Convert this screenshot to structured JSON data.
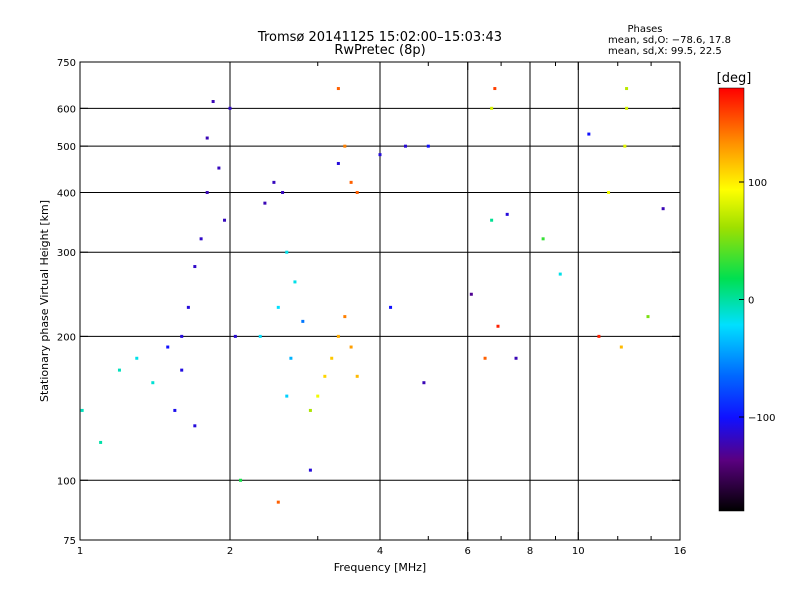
{
  "chart_data": {
    "type": "scatter",
    "title": "Tromsø 20141125 15:02:00–15:03:43",
    "subtitle": "RwPretec (8p)",
    "xlabel": "Frequency [MHz]",
    "ylabel": "Stationary phase Virtual Height [km]",
    "xscale": "log",
    "yscale": "log",
    "xlim": [
      1,
      16
    ],
    "ylim": [
      75,
      750
    ],
    "x_ticks": [
      1,
      2,
      4,
      6,
      8,
      10,
      16
    ],
    "x_tick_labels": [
      "1",
      "2",
      "4",
      "6",
      "8",
      "10",
      "16"
    ],
    "x_grid": [
      2,
      4,
      6,
      8,
      10
    ],
    "y_ticks": [
      75,
      100,
      200,
      300,
      400,
      500,
      600,
      750
    ],
    "y_tick_labels": [
      "75",
      "100",
      "200",
      "300",
      "400",
      "500",
      "600",
      "750"
    ],
    "y_grid": [
      100,
      200,
      300,
      400,
      500,
      600
    ],
    "grid": true,
    "phase_stats": {
      "header": "Phases",
      "line_o": "mean, sd,O: −78.6, 17.8",
      "line_x": "mean, sd,X:  99.5, 22.5"
    },
    "colorbar": {
      "label": "[deg]",
      "range": [
        -180,
        180
      ],
      "ticks": [
        100,
        0,
        -100
      ],
      "tick_labels": [
        "100",
        "0",
        "−100"
      ],
      "colormap": "rainbow: black (-180), purple, blue, cyan, green, yellow, orange, red (+180)"
    },
    "series": [
      {
        "points": [
          [
            1.01,
            140,
            -10
          ],
          [
            1.1,
            120,
            -5
          ],
          [
            1.2,
            170,
            -10
          ],
          [
            1.3,
            180,
            -20
          ],
          [
            1.4,
            160,
            -15
          ],
          [
            1.5,
            190,
            -100
          ],
          [
            1.55,
            140,
            -105
          ],
          [
            1.6,
            200,
            -110
          ],
          [
            1.65,
            230,
            -110
          ],
          [
            1.7,
            280,
            -115
          ],
          [
            1.75,
            320,
            -115
          ],
          [
            1.8,
            400,
            -120
          ],
          [
            1.8,
            520,
            -120
          ],
          [
            1.85,
            620,
            -120
          ],
          [
            1.9,
            450,
            -118
          ],
          [
            1.95,
            350,
            -118
          ],
          [
            2.0,
            600,
            -115
          ],
          [
            2.05,
            200,
            -112
          ],
          [
            1.7,
            130,
            -110
          ],
          [
            1.6,
            170,
            -108
          ]
        ]
      },
      {
        "points": [
          [
            2.35,
            380,
            -120
          ],
          [
            2.45,
            420,
            -118
          ],
          [
            2.55,
            400,
            -118
          ],
          [
            2.6,
            150,
            -30
          ],
          [
            2.65,
            180,
            -40
          ],
          [
            2.7,
            260,
            -20
          ],
          [
            2.5,
            230,
            -25
          ],
          [
            2.3,
            200,
            -25
          ],
          [
            2.6,
            300,
            -20
          ],
          [
            2.8,
            215,
            -60
          ]
        ]
      },
      {
        "points": [
          [
            2.9,
            140,
            65
          ],
          [
            3.0,
            150,
            90
          ],
          [
            3.1,
            165,
            110
          ],
          [
            3.2,
            180,
            115
          ],
          [
            3.3,
            200,
            125
          ],
          [
            3.4,
            220,
            140
          ],
          [
            3.5,
            190,
            130
          ],
          [
            3.6,
            165,
            120
          ],
          [
            3.3,
            460,
            -110
          ],
          [
            3.4,
            500,
            140
          ],
          [
            3.5,
            420,
            150
          ],
          [
            3.6,
            400,
            150
          ],
          [
            3.3,
            660,
            150
          ]
        ]
      },
      {
        "points": [
          [
            4.0,
            480,
            -110
          ],
          [
            4.5,
            500,
            -112
          ],
          [
            5.0,
            500,
            -100
          ],
          [
            6.8,
            660,
            160
          ],
          [
            6.7,
            600,
            80
          ],
          [
            6.7,
            350,
            0
          ],
          [
            7.2,
            360,
            -110
          ],
          [
            8.5,
            320,
            30
          ],
          [
            9.2,
            270,
            -20
          ],
          [
            10.5,
            530,
            -100
          ],
          [
            11.5,
            400,
            90
          ],
          [
            12.5,
            660,
            70
          ],
          [
            12.5,
            600,
            80
          ],
          [
            12.4,
            500,
            85
          ],
          [
            13.8,
            220,
            50
          ],
          [
            14.8,
            370,
            -120
          ],
          [
            12.2,
            190,
            120
          ],
          [
            11.0,
            200,
            170
          ],
          [
            6.5,
            180,
            150
          ],
          [
            6.9,
            210,
            170
          ],
          [
            7.5,
            180,
            -120
          ],
          [
            6.1,
            245,
            -130
          ],
          [
            4.2,
            230,
            -100
          ],
          [
            4.9,
            160,
            -120
          ],
          [
            2.1,
            100,
            20
          ],
          [
            2.5,
            90,
            150
          ],
          [
            2.9,
            105,
            -110
          ]
        ]
      }
    ]
  }
}
